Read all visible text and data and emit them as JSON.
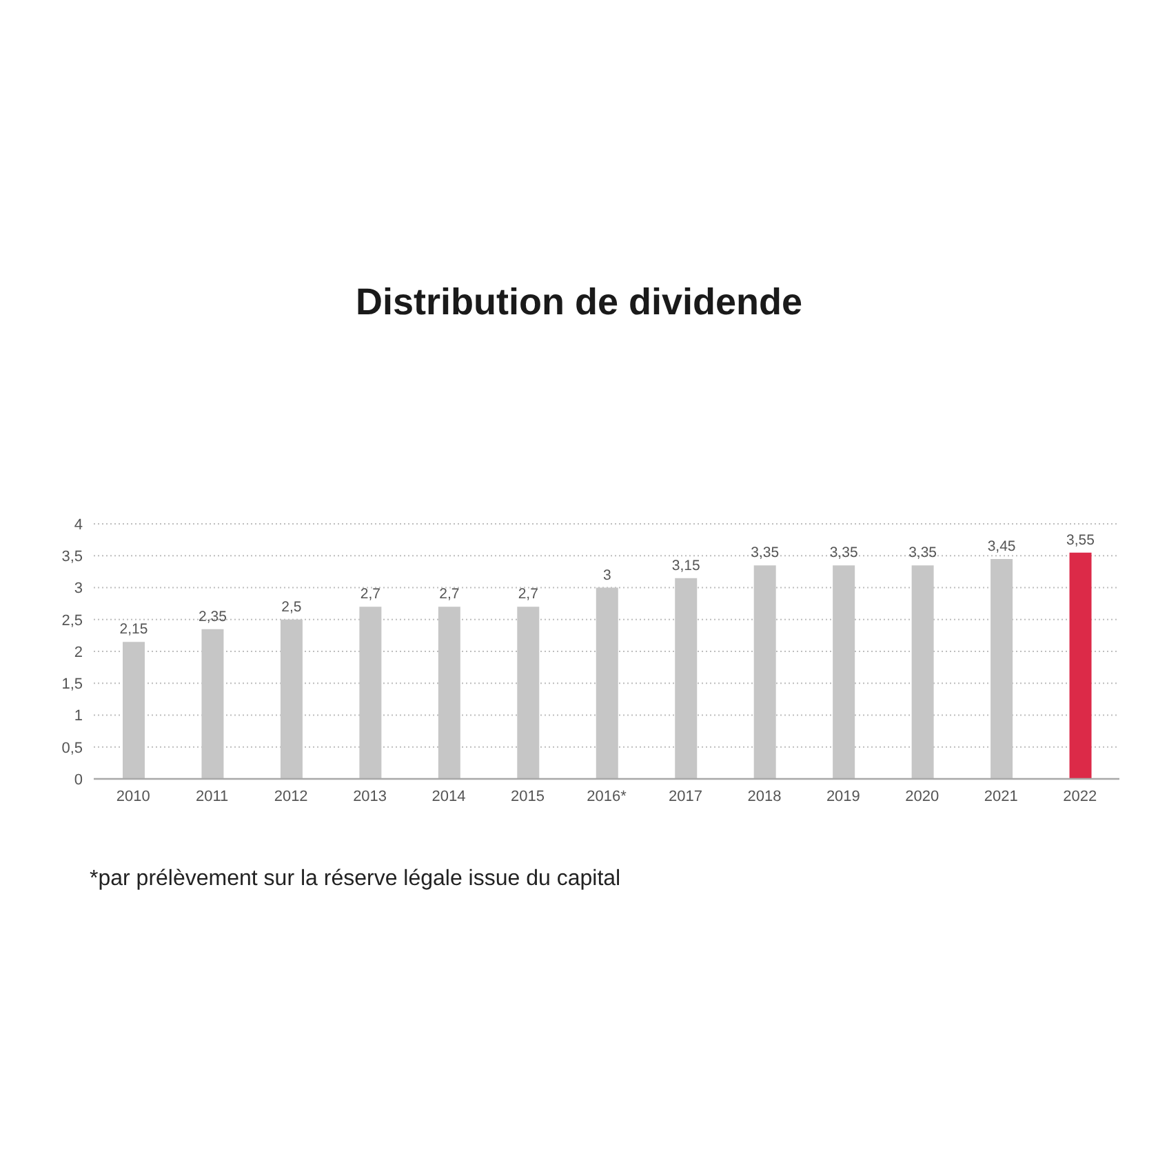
{
  "chart_data": {
    "type": "bar",
    "title": "Distribution de dividende",
    "categories": [
      "2010",
      "2011",
      "2012",
      "2013",
      "2014",
      "2015",
      "2016*",
      "2017",
      "2018",
      "2019",
      "2020",
      "2021",
      "2022"
    ],
    "values": [
      2.15,
      2.35,
      2.5,
      2.7,
      2.7,
      2.7,
      3,
      3.15,
      3.35,
      3.35,
      3.35,
      3.45,
      3.55
    ],
    "value_labels": [
      "2,15",
      "2,35",
      "2,5",
      "2,7",
      "2,7",
      "2,7",
      "3",
      "3,15",
      "3,35",
      "3,35",
      "3,35",
      "3,45",
      "3,55"
    ],
    "colors": [
      "#c6c6c6",
      "#c6c6c6",
      "#c6c6c6",
      "#c6c6c6",
      "#c6c6c6",
      "#c6c6c6",
      "#c6c6c6",
      "#c6c6c6",
      "#c6c6c6",
      "#c6c6c6",
      "#c6c6c6",
      "#c6c6c6",
      "#dc2a48"
    ],
    "ylim": [
      0,
      4
    ],
    "yticks": [
      0,
      {
        "value": 0.5,
        "label": "0,5"
      },
      1,
      {
        "value": 1.5,
        "label": "1,5"
      },
      2,
      {
        "value": 2.5,
        "label": "2,5"
      },
      3,
      {
        "value": 3.5,
        "label": "3,5"
      },
      4
    ],
    "grid": "y",
    "annotations": [
      "*par prélèvement sur la réserve légale issue du capital"
    ]
  }
}
